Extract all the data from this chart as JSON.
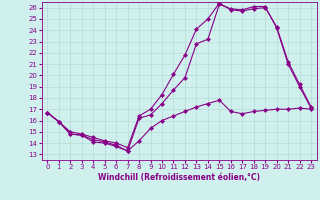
{
  "xlabel": "Windchill (Refroidissement éolien,°C)",
  "xlim": [
    -0.5,
    23.5
  ],
  "ylim": [
    12.5,
    26.5
  ],
  "xticks": [
    0,
    1,
    2,
    3,
    4,
    5,
    6,
    7,
    8,
    9,
    10,
    11,
    12,
    13,
    14,
    15,
    16,
    17,
    18,
    19,
    20,
    21,
    22,
    23
  ],
  "yticks": [
    13,
    14,
    15,
    16,
    17,
    18,
    19,
    20,
    21,
    22,
    23,
    24,
    25,
    26
  ],
  "bg_color": "#d0f0ee",
  "line_color": "#880088",
  "grid_color": "#b8dbd8",
  "line1_x": [
    0,
    1,
    2,
    3,
    4,
    5,
    6,
    7,
    8,
    9,
    10,
    11,
    12,
    13,
    14,
    15,
    16,
    17,
    18,
    19,
    20,
    21,
    22,
    23
  ],
  "line1_y": [
    16.7,
    15.9,
    14.8,
    14.7,
    14.1,
    14.0,
    13.7,
    13.3,
    14.2,
    15.3,
    16.0,
    16.4,
    16.8,
    17.2,
    17.5,
    17.8,
    16.8,
    16.6,
    16.8,
    16.9,
    17.0,
    17.0,
    17.1,
    17.0
  ],
  "line2_x": [
    0,
    1,
    2,
    3,
    4,
    5,
    6,
    7,
    8,
    9,
    10,
    11,
    12,
    13,
    14,
    15,
    16,
    17,
    18,
    19,
    20,
    21,
    22,
    23
  ],
  "line2_y": [
    16.7,
    15.9,
    14.8,
    14.7,
    14.3,
    14.1,
    13.8,
    13.3,
    16.2,
    16.5,
    17.5,
    18.7,
    19.8,
    22.8,
    23.2,
    26.3,
    25.9,
    25.8,
    26.1,
    26.1,
    24.2,
    21.0,
    19.0,
    17.1
  ],
  "line3_x": [
    0,
    1,
    2,
    3,
    4,
    5,
    6,
    7,
    8,
    9,
    10,
    11,
    12,
    13,
    14,
    15,
    16,
    17,
    18,
    19,
    20,
    21,
    22,
    23
  ],
  "line3_y": [
    16.7,
    15.9,
    15.0,
    14.8,
    14.5,
    14.2,
    14.0,
    13.6,
    16.4,
    17.0,
    18.3,
    20.1,
    21.8,
    24.1,
    25.0,
    26.4,
    25.8,
    25.7,
    25.9,
    26.0,
    24.3,
    21.2,
    19.2,
    17.2
  ],
  "marker_size": 2.5,
  "line_width": 0.8,
  "tick_fontsize": 5.0,
  "xlabel_fontsize": 5.5
}
